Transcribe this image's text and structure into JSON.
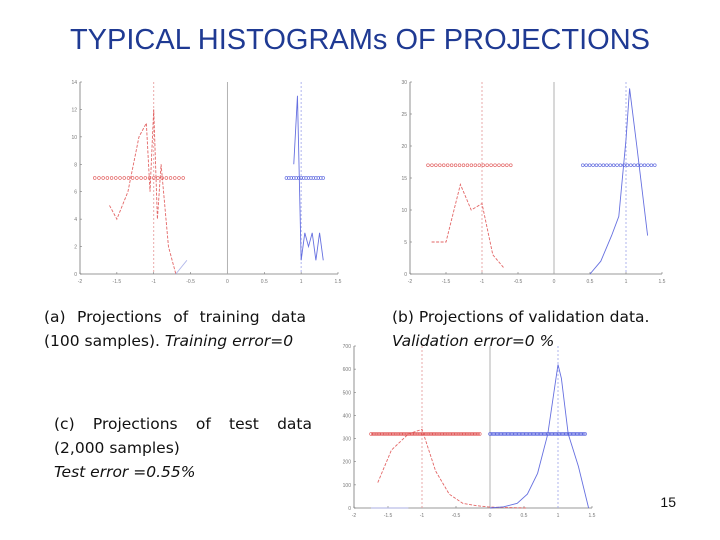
{
  "slide": {
    "title": "TYPICAL HISTOGRAMs OF PROJECTIONS",
    "page_number": "15",
    "colors": {
      "title": "#1f3a93",
      "class_pos": "#e05555",
      "class_neg": "#5560dd",
      "threshold": "#999999"
    }
  },
  "captions": {
    "a": {
      "line1": "(a) Projections of training data",
      "line2": "(100 samples).",
      "line2_italic": "Training error=0"
    },
    "b": {
      "line1": "(b) Projections of validation data.",
      "line2_italic": "Validation error=0 %"
    },
    "c": {
      "line1": "(c) Projections of test data",
      "line2": "(2,000 samples)",
      "line3_italic": "Test error =0.55%"
    }
  },
  "chart_data": [
    {
      "type": "line",
      "id": "a",
      "xlim": [
        -2,
        1.5
      ],
      "ylim": [
        0,
        14
      ],
      "xticks": [
        -2,
        -1.5,
        -1,
        -0.5,
        0,
        0.5,
        1,
        1.5
      ],
      "xtick_labels": [
        "-2",
        "-1.5",
        "-1",
        "-0.5",
        "0",
        "0.5",
        "1",
        "1.5"
      ],
      "yticks": [
        0,
        2,
        4,
        6,
        8,
        10,
        12,
        14
      ],
      "ytick_labels": [
        "0",
        "2",
        "4",
        "6",
        "8",
        "10",
        "12",
        "14"
      ],
      "vlines": [
        -1,
        0,
        1
      ],
      "series": [
        {
          "class": "pos",
          "color": "#e05555",
          "x": [
            -1.6,
            -1.5,
            -1.35,
            -1.2,
            -1.1,
            -1.05,
            -1.0,
            -0.95,
            -0.9,
            -0.8,
            -0.7
          ],
          "y": [
            5,
            4,
            6,
            10,
            11,
            6,
            12,
            4,
            8,
            2,
            0
          ]
        },
        {
          "class": "neg",
          "color": "#5560dd",
          "x": [
            0.9,
            0.95,
            1.0,
            1.05,
            1.1,
            1.15,
            1.2,
            1.25,
            1.3
          ],
          "y": [
            8,
            13,
            1,
            3,
            2,
            3,
            1,
            3,
            1
          ]
        },
        {
          "class": "neg-faint",
          "color": "#aab0e8",
          "x": [
            -0.7,
            -0.55
          ],
          "y": [
            0,
            1
          ]
        }
      ],
      "points": [
        {
          "class": "pos",
          "y": 7,
          "x_start": -1.8,
          "x_end": -0.6,
          "n": 22
        },
        {
          "class": "neg",
          "y": 7,
          "x_start": 0.8,
          "x_end": 1.3,
          "n": 16
        }
      ]
    },
    {
      "type": "line",
      "id": "b",
      "xlim": [
        -2,
        1.5
      ],
      "ylim": [
        0,
        30
      ],
      "xticks": [
        -2,
        -1.5,
        -1,
        -0.5,
        0,
        0.5,
        1,
        1.5
      ],
      "xtick_labels": [
        "-2",
        "-1.5",
        "-1",
        "-0.5",
        "0",
        "0.5",
        "1",
        "1.5"
      ],
      "yticks": [
        0,
        5,
        10,
        15,
        20,
        25,
        30
      ],
      "ytick_labels": [
        "0",
        "5",
        "10",
        "15",
        "20",
        "25",
        "30"
      ],
      "vlines": [
        -1,
        0,
        1
      ],
      "series": [
        {
          "class": "pos",
          "color": "#e05555",
          "x": [
            -1.7,
            -1.5,
            -1.3,
            -1.15,
            -1.0,
            -0.85,
            -0.7
          ],
          "y": [
            5,
            5,
            14,
            10,
            11,
            3,
            1
          ]
        },
        {
          "class": "neg",
          "color": "#5560dd",
          "x": [
            0.5,
            0.65,
            0.8,
            0.9,
            1.0,
            1.05,
            1.15,
            1.3
          ],
          "y": [
            0,
            2,
            6,
            9,
            21,
            29,
            20,
            6
          ]
        }
      ],
      "points": [
        {
          "class": "pos",
          "y": 17,
          "x_start": -1.75,
          "x_end": -0.6,
          "n": 22
        },
        {
          "class": "neg",
          "y": 17,
          "x_start": 0.4,
          "x_end": 1.4,
          "n": 22
        }
      ]
    },
    {
      "type": "line",
      "id": "c",
      "xlim": [
        -2,
        1.5
      ],
      "ylim": [
        0,
        700
      ],
      "xticks": [
        -2,
        -1.5,
        -1,
        -0.5,
        0,
        0.5,
        1,
        1.5
      ],
      "xtick_labels": [
        "-2",
        "-1.5",
        "-1",
        "-0.5",
        "0",
        "0.5",
        "1",
        "1.5"
      ],
      "yticks": [
        0,
        100,
        200,
        300,
        400,
        500,
        600,
        700
      ],
      "ytick_labels": [
        "0",
        "100",
        "200",
        "300",
        "400",
        "500",
        "600",
        "700"
      ],
      "vlines": [
        -1,
        0,
        1
      ],
      "series": [
        {
          "class": "pos",
          "color": "#e05555",
          "x": [
            -1.65,
            -1.45,
            -1.2,
            -1.0,
            -0.8,
            -0.6,
            -0.4,
            -0.2,
            0.0,
            0.2,
            0.4,
            0.55
          ],
          "y": [
            110,
            250,
            320,
            340,
            160,
            60,
            20,
            10,
            4,
            2,
            1,
            0
          ]
        },
        {
          "class": "neg",
          "color": "#5560dd",
          "x": [
            0.0,
            0.2,
            0.4,
            0.55,
            0.7,
            0.85,
            0.95,
            1.0,
            1.05,
            1.15,
            1.3,
            1.45
          ],
          "y": [
            0,
            5,
            20,
            60,
            150,
            320,
            520,
            620,
            560,
            320,
            180,
            0
          ]
        },
        {
          "class": "neg-faint",
          "color": "#aab0e8",
          "x": [
            -1.75,
            -1.5,
            -1.2
          ],
          "y": [
            0,
            0,
            0
          ]
        }
      ],
      "points": [
        {
          "class": "pos",
          "y": 320,
          "x_start": -1.75,
          "x_end": -0.15,
          "n": 70
        },
        {
          "class": "neg",
          "y": 320,
          "x_start": 0.0,
          "x_end": 1.4,
          "n": 70
        }
      ]
    }
  ]
}
